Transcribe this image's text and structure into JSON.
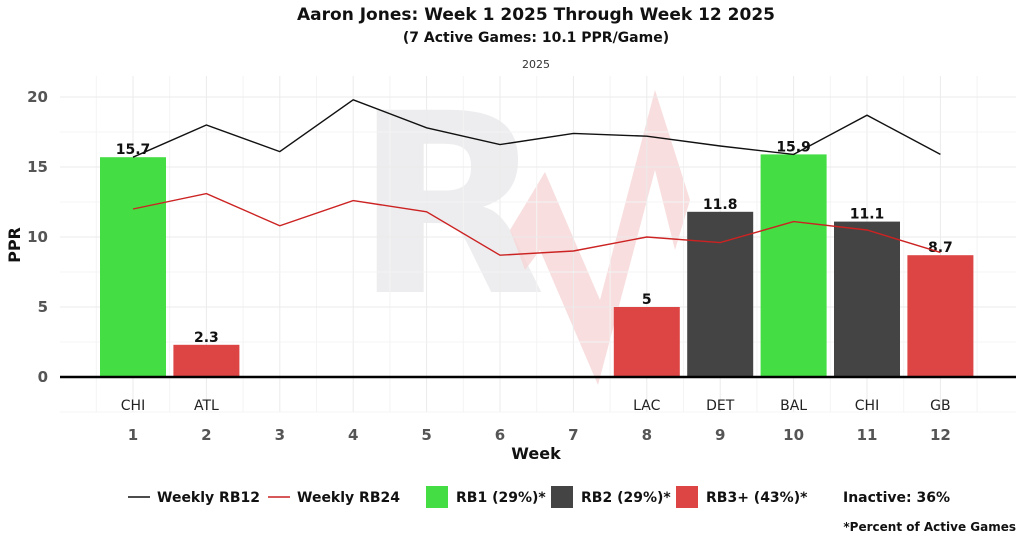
{
  "chart_data": {
    "type": "bar",
    "title": "Aaron Jones: Week 1 2025 Through Week 12 2025",
    "subtitle": "(7 Active Games: 10.1 PPR/Game)",
    "facet_label": "2025",
    "xlabel": "Week",
    "ylabel": "PPR",
    "ylim": [
      -2.5,
      21.5
    ],
    "yticks": [
      0,
      5,
      10,
      15,
      20
    ],
    "weeks": [
      1,
      2,
      3,
      4,
      5,
      6,
      7,
      8,
      9,
      10,
      11,
      12
    ],
    "bars": [
      {
        "week": 1,
        "value": 15.7,
        "label": "15.7",
        "team": "CHI",
        "tier": "RB1"
      },
      {
        "week": 2,
        "value": 2.3,
        "label": "2.3",
        "team": "ATL",
        "tier": "RB3+"
      },
      {
        "week": 8,
        "value": 5,
        "label": "5",
        "team": "LAC",
        "tier": "RB3+"
      },
      {
        "week": 9,
        "value": 11.8,
        "label": "11.8",
        "team": "DET",
        "tier": "RB2"
      },
      {
        "week": 10,
        "value": 15.9,
        "label": "15.9",
        "team": "BAL",
        "tier": "RB1"
      },
      {
        "week": 11,
        "value": 11.1,
        "label": "11.1",
        "team": "CHI",
        "tier": "RB2"
      },
      {
        "week": 12,
        "value": 8.7,
        "label": "8.7",
        "team": "GB",
        "tier": "RB3+"
      }
    ],
    "series": [
      {
        "name": "Weekly RB12",
        "color": "#111111",
        "values": [
          15.7,
          18.0,
          16.1,
          19.8,
          17.8,
          16.6,
          17.4,
          17.2,
          16.5,
          15.9,
          18.7,
          15.9
        ]
      },
      {
        "name": "Weekly RB24",
        "color": "#cc2222",
        "values": [
          12.0,
          13.1,
          10.8,
          12.6,
          11.8,
          8.7,
          9.0,
          10.0,
          9.6,
          11.1,
          10.5,
          8.9
        ]
      }
    ],
    "colors": {
      "RB1": "#44dd44",
      "RB2": "#444444",
      "RB3+": "#dd4444"
    }
  },
  "legend": {
    "rb12": "Weekly RB12",
    "rb24": "Weekly RB24",
    "rb1": "RB1 (29%)*",
    "rb2": "RB2 (29%)*",
    "rb3": "RB3+ (43%)*",
    "inactive": "Inactive: 36%"
  },
  "footnote": "*Percent of Active Games"
}
